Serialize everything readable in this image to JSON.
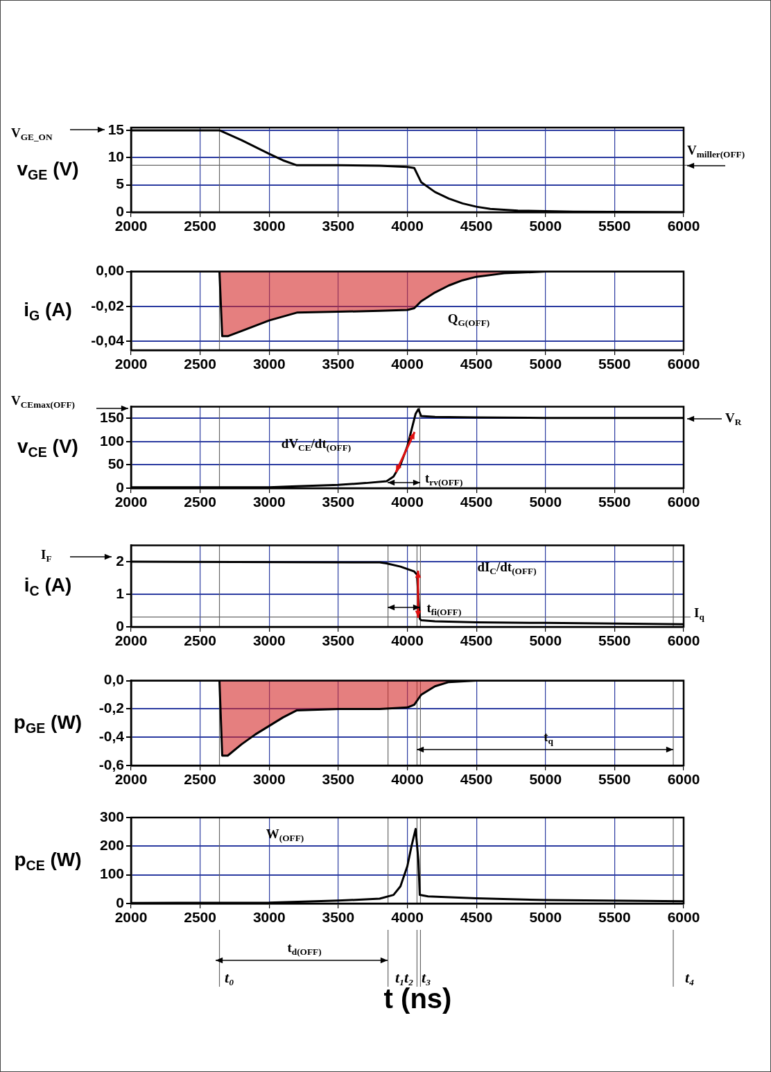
{
  "chart_data": [
    {
      "type": "line",
      "ylabel": "v$_{GE}$ (V)",
      "x": [
        2000,
        2640,
        2800,
        3000,
        3100,
        3200,
        3500,
        3800,
        4000,
        4050,
        4100,
        4200,
        4300,
        4400,
        4500,
        4600,
        4800,
        5000,
        5200,
        6000
      ],
      "series": [
        {
          "color": "#000000",
          "values": [
            15,
            15,
            13.2,
            10.7,
            9.5,
            8.6,
            8.6,
            8.5,
            8.3,
            8.1,
            5.5,
            3.7,
            2.5,
            1.6,
            1.0,
            0.6,
            0.3,
            0.2,
            0.1,
            0
          ]
        }
      ],
      "xlim": [
        2000,
        6000
      ],
      "xticks": [
        2000,
        2500,
        3000,
        3500,
        4000,
        4500,
        5000,
        5500,
        6000
      ],
      "ylim": [
        0,
        15.5
      ],
      "yticks": [
        0,
        5,
        10,
        15
      ],
      "grid": true,
      "legend": false,
      "ref_lines": [
        {
          "axis": "x",
          "value": 2640
        },
        {
          "axis": "y",
          "value": 8.6
        }
      ],
      "annotations": [
        "V$_{GE_ON}$",
        "V$_{miller(OFF)}$"
      ]
    },
    {
      "type": "area",
      "ylabel": "i$_{G}$ (A)",
      "x": [
        2000,
        2640,
        2660,
        2700,
        2800,
        3000,
        3200,
        3500,
        3800,
        4000,
        4050,
        4100,
        4200,
        4300,
        4400,
        4500,
        4700,
        5000,
        6000
      ],
      "series": [
        {
          "color": "#d42a2a",
          "values": [
            0,
            0,
            -0.037,
            -0.037,
            -0.034,
            -0.028,
            -0.0235,
            -0.023,
            -0.0225,
            -0.022,
            -0.021,
            -0.017,
            -0.012,
            -0.008,
            -0.005,
            -0.003,
            -0.001,
            0,
            0
          ]
        }
      ],
      "xlim": [
        2000,
        6000
      ],
      "xticks": [
        2000,
        2500,
        3000,
        3500,
        4000,
        4500,
        5000,
        5500,
        6000
      ],
      "ylim": [
        -0.045,
        0
      ],
      "yticks": [
        {
          "value": -0.04,
          "label": "-0,04"
        },
        {
          "value": -0.02,
          "label": "-0,02"
        },
        {
          "value": 0,
          "label": "0,00"
        }
      ],
      "grid": true,
      "legend": false,
      "ref_lines": [
        {
          "axis": "x",
          "value": 2640
        }
      ],
      "annotations": [
        "Q$_{G(OFF)}$"
      ]
    },
    {
      "type": "line",
      "ylabel": "v$_{CE}$ (V)",
      "x": [
        2000,
        3000,
        3200,
        3500,
        3700,
        3850,
        3900,
        3950,
        4000,
        4030,
        4060,
        4080,
        4100,
        4200,
        4500,
        5000,
        6000
      ],
      "series": [
        {
          "color": "#000000",
          "values": [
            2,
            2,
            4,
            7,
            11,
            15,
            25,
            50,
            90,
            125,
            160,
            170,
            155,
            153,
            152,
            151,
            151
          ]
        }
      ],
      "xlim": [
        2000,
        6000
      ],
      "xticks": [
        2000,
        2500,
        3000,
        3500,
        4000,
        4500,
        5000,
        5500,
        6000
      ],
      "ylim": [
        0,
        175
      ],
      "yticks": [
        0,
        50,
        100,
        150
      ],
      "grid": true,
      "legend": false,
      "ref_lines": [
        {
          "axis": "x",
          "value": 2640
        },
        {
          "axis": "x",
          "value": 4090
        }
      ],
      "annotations": [
        "V$_{CEmax(OFF)}$",
        "V$_{R}$",
        "dV$_{CE}$/dt$_{(OFF)}$",
        "t$_{rv(OFF)}$"
      ]
    },
    {
      "type": "line",
      "ylabel": "i$_{C}$ (A)",
      "x": [
        2000,
        3800,
        3850,
        3950,
        4050,
        4070,
        4080,
        4090,
        4100,
        4200,
        4500,
        5000,
        5500,
        6000
      ],
      "series": [
        {
          "color": "#000000",
          "values": [
            2,
            1.98,
            1.95,
            1.85,
            1.7,
            1.6,
            0.9,
            0.25,
            0.2,
            0.17,
            0.14,
            0.12,
            0.1,
            0.08
          ]
        }
      ],
      "xlim": [
        2000,
        6000
      ],
      "xticks": [
        2000,
        2500,
        3000,
        3500,
        4000,
        4500,
        5000,
        5500,
        6000
      ],
      "ylim": [
        0,
        2.5
      ],
      "yticks": [
        0,
        1,
        2
      ],
      "grid": true,
      "legend": false,
      "ref_lines": [
        {
          "axis": "x",
          "value": 2640
        },
        {
          "axis": "x",
          "value": 3860
        },
        {
          "axis": "x",
          "value": 4070
        },
        {
          "axis": "x",
          "value": 4095
        },
        {
          "axis": "x",
          "value": 5925
        },
        {
          "axis": "y",
          "value": 0.3
        }
      ],
      "annotations": [
        "I$_{F}$",
        "I$_{q}$",
        "dI$_{C}$/dt$_{(OFF)}$",
        {
          "text": "t$_{fi(OFF)}$",
          "x": 4090,
          "y": 0.56
        }
      ]
    },
    {
      "type": "area",
      "ylabel": "p$_{GE}$ (W)",
      "x": [
        2000,
        2640,
        2660,
        2700,
        2800,
        2900,
        3000,
        3100,
        3200,
        3500,
        3800,
        4000,
        4050,
        4100,
        4200,
        4300,
        4500,
        6000
      ],
      "series": [
        {
          "color": "#d42a2a",
          "values": [
            0,
            0,
            -0.53,
            -0.53,
            -0.45,
            -0.38,
            -0.32,
            -0.26,
            -0.21,
            -0.2,
            -0.2,
            -0.19,
            -0.17,
            -0.1,
            -0.04,
            -0.01,
            0,
            0
          ]
        }
      ],
      "xlim": [
        2000,
        6000
      ],
      "xticks": [
        2000,
        2500,
        3000,
        3500,
        4000,
        4500,
        5000,
        5500,
        6000
      ],
      "ylim": [
        -0.6,
        0
      ],
      "yticks": [
        {
          "value": -0.6,
          "label": "-0,6"
        },
        {
          "value": -0.4,
          "label": "-0,4"
        },
        {
          "value": -0.2,
          "label": "-0,2"
        },
        {
          "value": 0,
          "label": "0,0"
        }
      ],
      "grid": true,
      "legend": false,
      "ref_lines": [
        {
          "axis": "x",
          "value": 2640
        },
        {
          "axis": "x",
          "value": 3860
        },
        {
          "axis": "x",
          "value": 4070
        },
        {
          "axis": "x",
          "value": 4095
        },
        {
          "axis": "x",
          "value": 5925
        }
      ],
      "annotations": [
        "t$_{q}$"
      ]
    },
    {
      "type": "line",
      "ylabel": "p$_{CE}$ (W)",
      "xlabel": "t (ns)",
      "x": [
        2000,
        3000,
        3500,
        3800,
        3900,
        3950,
        4000,
        4030,
        4060,
        4080,
        4090,
        4150,
        4500,
        5000,
        6000
      ],
      "series": [
        {
          "color": "#000000",
          "values": [
            2,
            3,
            10,
            17,
            30,
            60,
            130,
            200,
            260,
            150,
            30,
            25,
            18,
            12,
            8
          ]
        }
      ],
      "xlim": [
        2000,
        6000
      ],
      "xticks": [
        2000,
        2500,
        3000,
        3500,
        4000,
        4500,
        5000,
        5500,
        6000
      ],
      "ylim": [
        0,
        300
      ],
      "yticks": [
        0,
        100,
        200,
        300
      ],
      "grid": true,
      "legend": false,
      "ref_lines": [
        {
          "axis": "x",
          "value": 2640
        },
        {
          "axis": "x",
          "value": 3860
        },
        {
          "axis": "x",
          "value": 4070
        },
        {
          "axis": "x",
          "value": 4095
        },
        {
          "axis": "x",
          "value": 5925
        }
      ],
      "annotations": [
        "W$_{(OFF)}$",
        "t$_{d(OFF)}$",
        "t₀",
        "t₁",
        "t₂",
        "t₃",
        "t₄"
      ]
    }
  ]
}
